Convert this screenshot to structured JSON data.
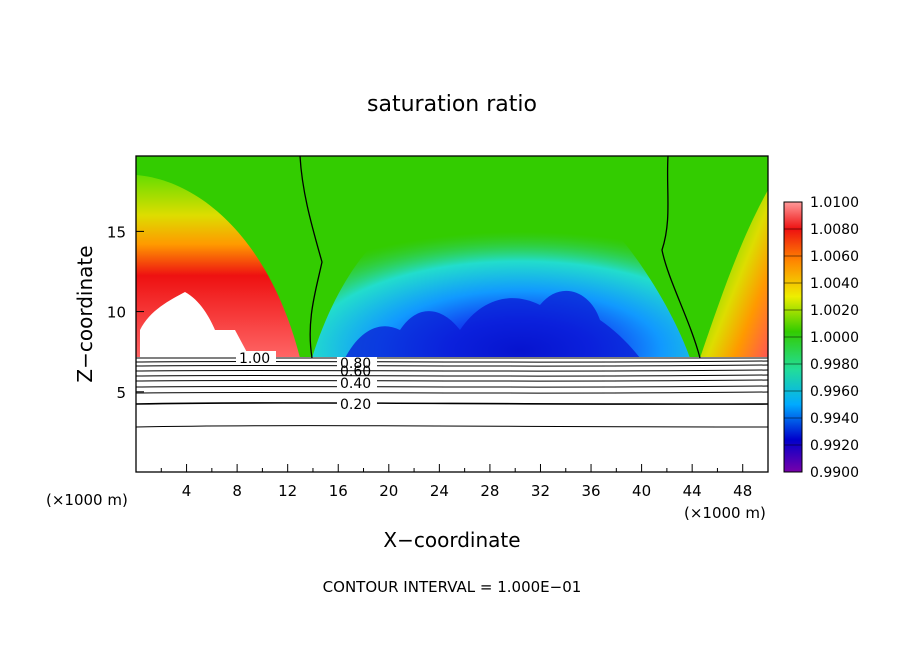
{
  "chart_data": {
    "type": "heatmap",
    "title": "saturation ratio",
    "xlabel": "X−coordinate",
    "ylabel": "Z−coordinate",
    "x_unit_left": "(×1000 m)",
    "x_unit_right": "(×1000 m)",
    "xlim": [
      0,
      50
    ],
    "ylim": [
      0,
      19.7
    ],
    "x_ticks": [
      "4",
      "8",
      "12",
      "16",
      "20",
      "24",
      "28",
      "32",
      "36",
      "40",
      "44",
      "48"
    ],
    "y_ticks": [
      "5",
      "10",
      "15"
    ],
    "colorbar": {
      "labels": [
        "1.0100",
        "1.0080",
        "1.0060",
        "1.0040",
        "1.0020",
        "1.0000",
        "0.9980",
        "0.9960",
        "0.9940",
        "0.9920",
        "0.9900"
      ],
      "colors": [
        "#ff8a8a",
        "#ee1111",
        "#ff9900",
        "#dddd00",
        "#33cc00",
        "#22dd99",
        "#00aaff",
        "#0000cc",
        "#7700aa"
      ]
    },
    "contour_labels": [
      "1.00",
      "0.80",
      "0.60",
      "0.40",
      "0.20"
    ],
    "contour_interval_text": "CONTOUR INTERVAL = 1.000E−01",
    "colors": {
      "high": "#ee1111",
      "neutral": "#33cc00",
      "low": "#0000cc"
    }
  }
}
